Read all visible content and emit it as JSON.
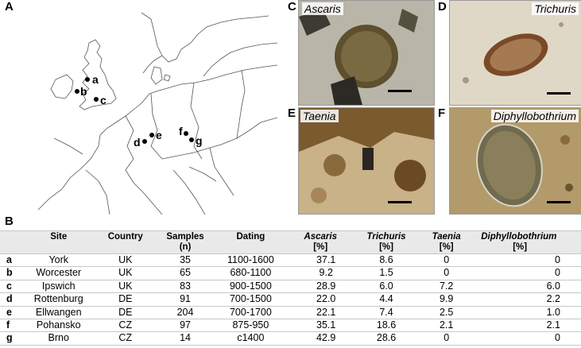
{
  "panels": {
    "A": "A",
    "B": "B",
    "C": "C",
    "D": "D",
    "E": "E",
    "F": "F"
  },
  "photos": {
    "C": "Ascaris",
    "D": "Trichuris",
    "E": "Taenia",
    "F": "Diphyllobothrium"
  },
  "map_sites": [
    "a",
    "b",
    "c",
    "d",
    "e",
    "f",
    "g"
  ],
  "table": {
    "headers": {
      "site": "Site",
      "country": "Country",
      "samples": "Samples",
      "samples_unit": "(n)",
      "dating": "Dating",
      "ascaris": "Ascaris",
      "trichuris": "Trichuris",
      "taenia": "Taenia",
      "diphyllo": "Diphyllobothrium",
      "pct": "[%]"
    },
    "rows": [
      {
        "id": "a",
        "site": "York",
        "country": "UK",
        "samples": "35",
        "dating": "1100-1600",
        "ascaris": "37.1",
        "trichuris": "8.6",
        "taenia": "0",
        "diphyllo": "0"
      },
      {
        "id": "b",
        "site": "Worcester",
        "country": "UK",
        "samples": "65",
        "dating": "680-1100",
        "ascaris": "9.2",
        "trichuris": "1.5",
        "taenia": "0",
        "diphyllo": "0"
      },
      {
        "id": "c",
        "site": "Ipswich",
        "country": "UK",
        "samples": "83",
        "dating": "900-1500",
        "ascaris": "28.9",
        "trichuris": "6.0",
        "taenia": "7.2",
        "diphyllo": "6.0"
      },
      {
        "id": "d",
        "site": "Rottenburg",
        "country": "DE",
        "samples": "91",
        "dating": "700-1500",
        "ascaris": "22.0",
        "trichuris": "4.4",
        "taenia": "9.9",
        "diphyllo": "2.2"
      },
      {
        "id": "e",
        "site": "Ellwangen",
        "country": "DE",
        "samples": "204",
        "dating": "700-1700",
        "ascaris": "22.1",
        "trichuris": "7.4",
        "taenia": "2.5",
        "diphyllo": "1.0"
      },
      {
        "id": "f",
        "site": "Pohansko",
        "country": "CZ",
        "samples": "97",
        "dating": "875-950",
        "ascaris": "35.1",
        "trichuris": "18.6",
        "taenia": "2.1",
        "diphyllo": "2.1"
      },
      {
        "id": "g",
        "site": "Brno",
        "country": "CZ",
        "samples": "14",
        "dating": "c1400",
        "ascaris": "42.9",
        "trichuris": "28.6",
        "taenia": "0",
        "diphyllo": "0"
      }
    ]
  }
}
